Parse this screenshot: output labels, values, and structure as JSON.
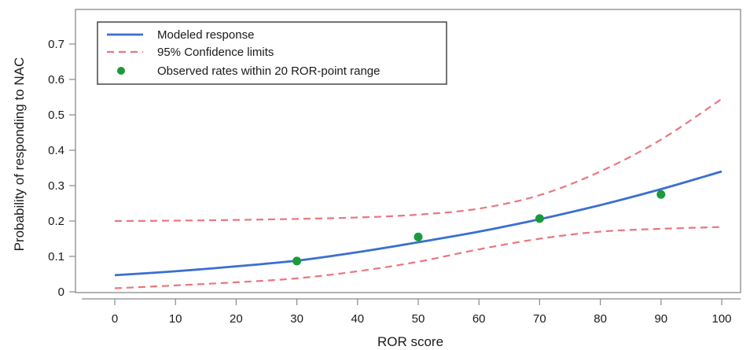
{
  "chart_data": {
    "type": "line",
    "xlabel": "ROR score",
    "ylabel": "Probability of responding to NAC",
    "xlim": [
      0,
      100
    ],
    "ylim": [
      0,
      0.75
    ],
    "x_ticks": [
      0,
      10,
      20,
      30,
      40,
      50,
      60,
      70,
      80,
      90,
      100
    ],
    "y_ticks": [
      0,
      0.1,
      0.2,
      0.3,
      0.4,
      0.5,
      0.6,
      0.7
    ],
    "x_tick_labels": [
      "0",
      "10",
      "20",
      "30",
      "40",
      "50",
      "60",
      "70",
      "80",
      "90",
      "100"
    ],
    "y_tick_labels": [
      "0",
      "0.1",
      "0.2",
      "0.3",
      "0.4",
      "0.5",
      "0.6",
      "0.7"
    ],
    "grid": false,
    "legend_position": "top-left",
    "series": [
      {
        "name": "Modeled response",
        "kind": "line",
        "style": "solid",
        "color": "#3a6fd0",
        "x": [
          0,
          10,
          20,
          30,
          40,
          50,
          60,
          70,
          80,
          90,
          100
        ],
        "y": [
          0.047,
          0.058,
          0.072,
          0.088,
          0.112,
          0.14,
          0.17,
          0.205,
          0.245,
          0.29,
          0.34
        ]
      },
      {
        "name": "95% Confidence limits",
        "kind": "line",
        "style": "dashed",
        "color": "#e8777f",
        "x": [
          0,
          10,
          20,
          30,
          40,
          50,
          60,
          70,
          80,
          90,
          100
        ],
        "y": [
          0.2,
          0.201,
          0.203,
          0.206,
          0.21,
          0.218,
          0.235,
          0.273,
          0.34,
          0.43,
          0.545
        ]
      },
      {
        "name": "",
        "kind": "line",
        "style": "dashed",
        "color": "#e8777f",
        "x": [
          0,
          10,
          20,
          30,
          40,
          50,
          60,
          70,
          80,
          90,
          100
        ],
        "y": [
          0.01,
          0.018,
          0.027,
          0.038,
          0.058,
          0.085,
          0.12,
          0.15,
          0.17,
          0.178,
          0.183
        ]
      },
      {
        "name": "Observed rates within 20 ROR-point range",
        "kind": "scatter",
        "color": "#1a9a3a",
        "x": [
          30,
          50,
          70,
          90
        ],
        "y": [
          0.087,
          0.155,
          0.207,
          0.275
        ]
      }
    ]
  }
}
